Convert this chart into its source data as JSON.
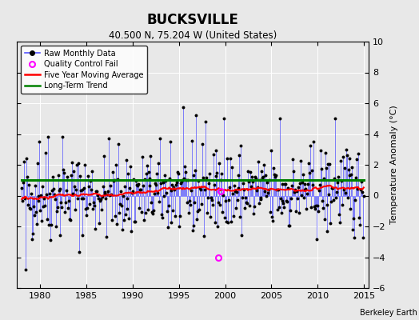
{
  "title": "BUCKSVILLE",
  "subtitle": "40.500 N, 75.204 W (United States)",
  "ylabel": "Temperature Anomaly (°C)",
  "attribution": "Berkeley Earth",
  "xlim": [
    1977.5,
    2015.5
  ],
  "ylim": [
    -6,
    10
  ],
  "yticks": [
    -6,
    -4,
    -2,
    0,
    2,
    4,
    6,
    8,
    10
  ],
  "xticks": [
    1980,
    1985,
    1990,
    1995,
    2000,
    2005,
    2010,
    2015
  ],
  "bg_color": "#e8e8e8",
  "grid_color": "#cccccc",
  "raw_line_color": "#5555ff",
  "dot_color": "black",
  "ma_color": "red",
  "trend_color": "green",
  "qc_color": "magenta",
  "start_year": 1978,
  "end_year": 2014,
  "trend_level": 1.0,
  "qc_x": 1999.3,
  "qc_y": -4.0,
  "qc2_x": 1999.55,
  "qc2_y": 0.3
}
